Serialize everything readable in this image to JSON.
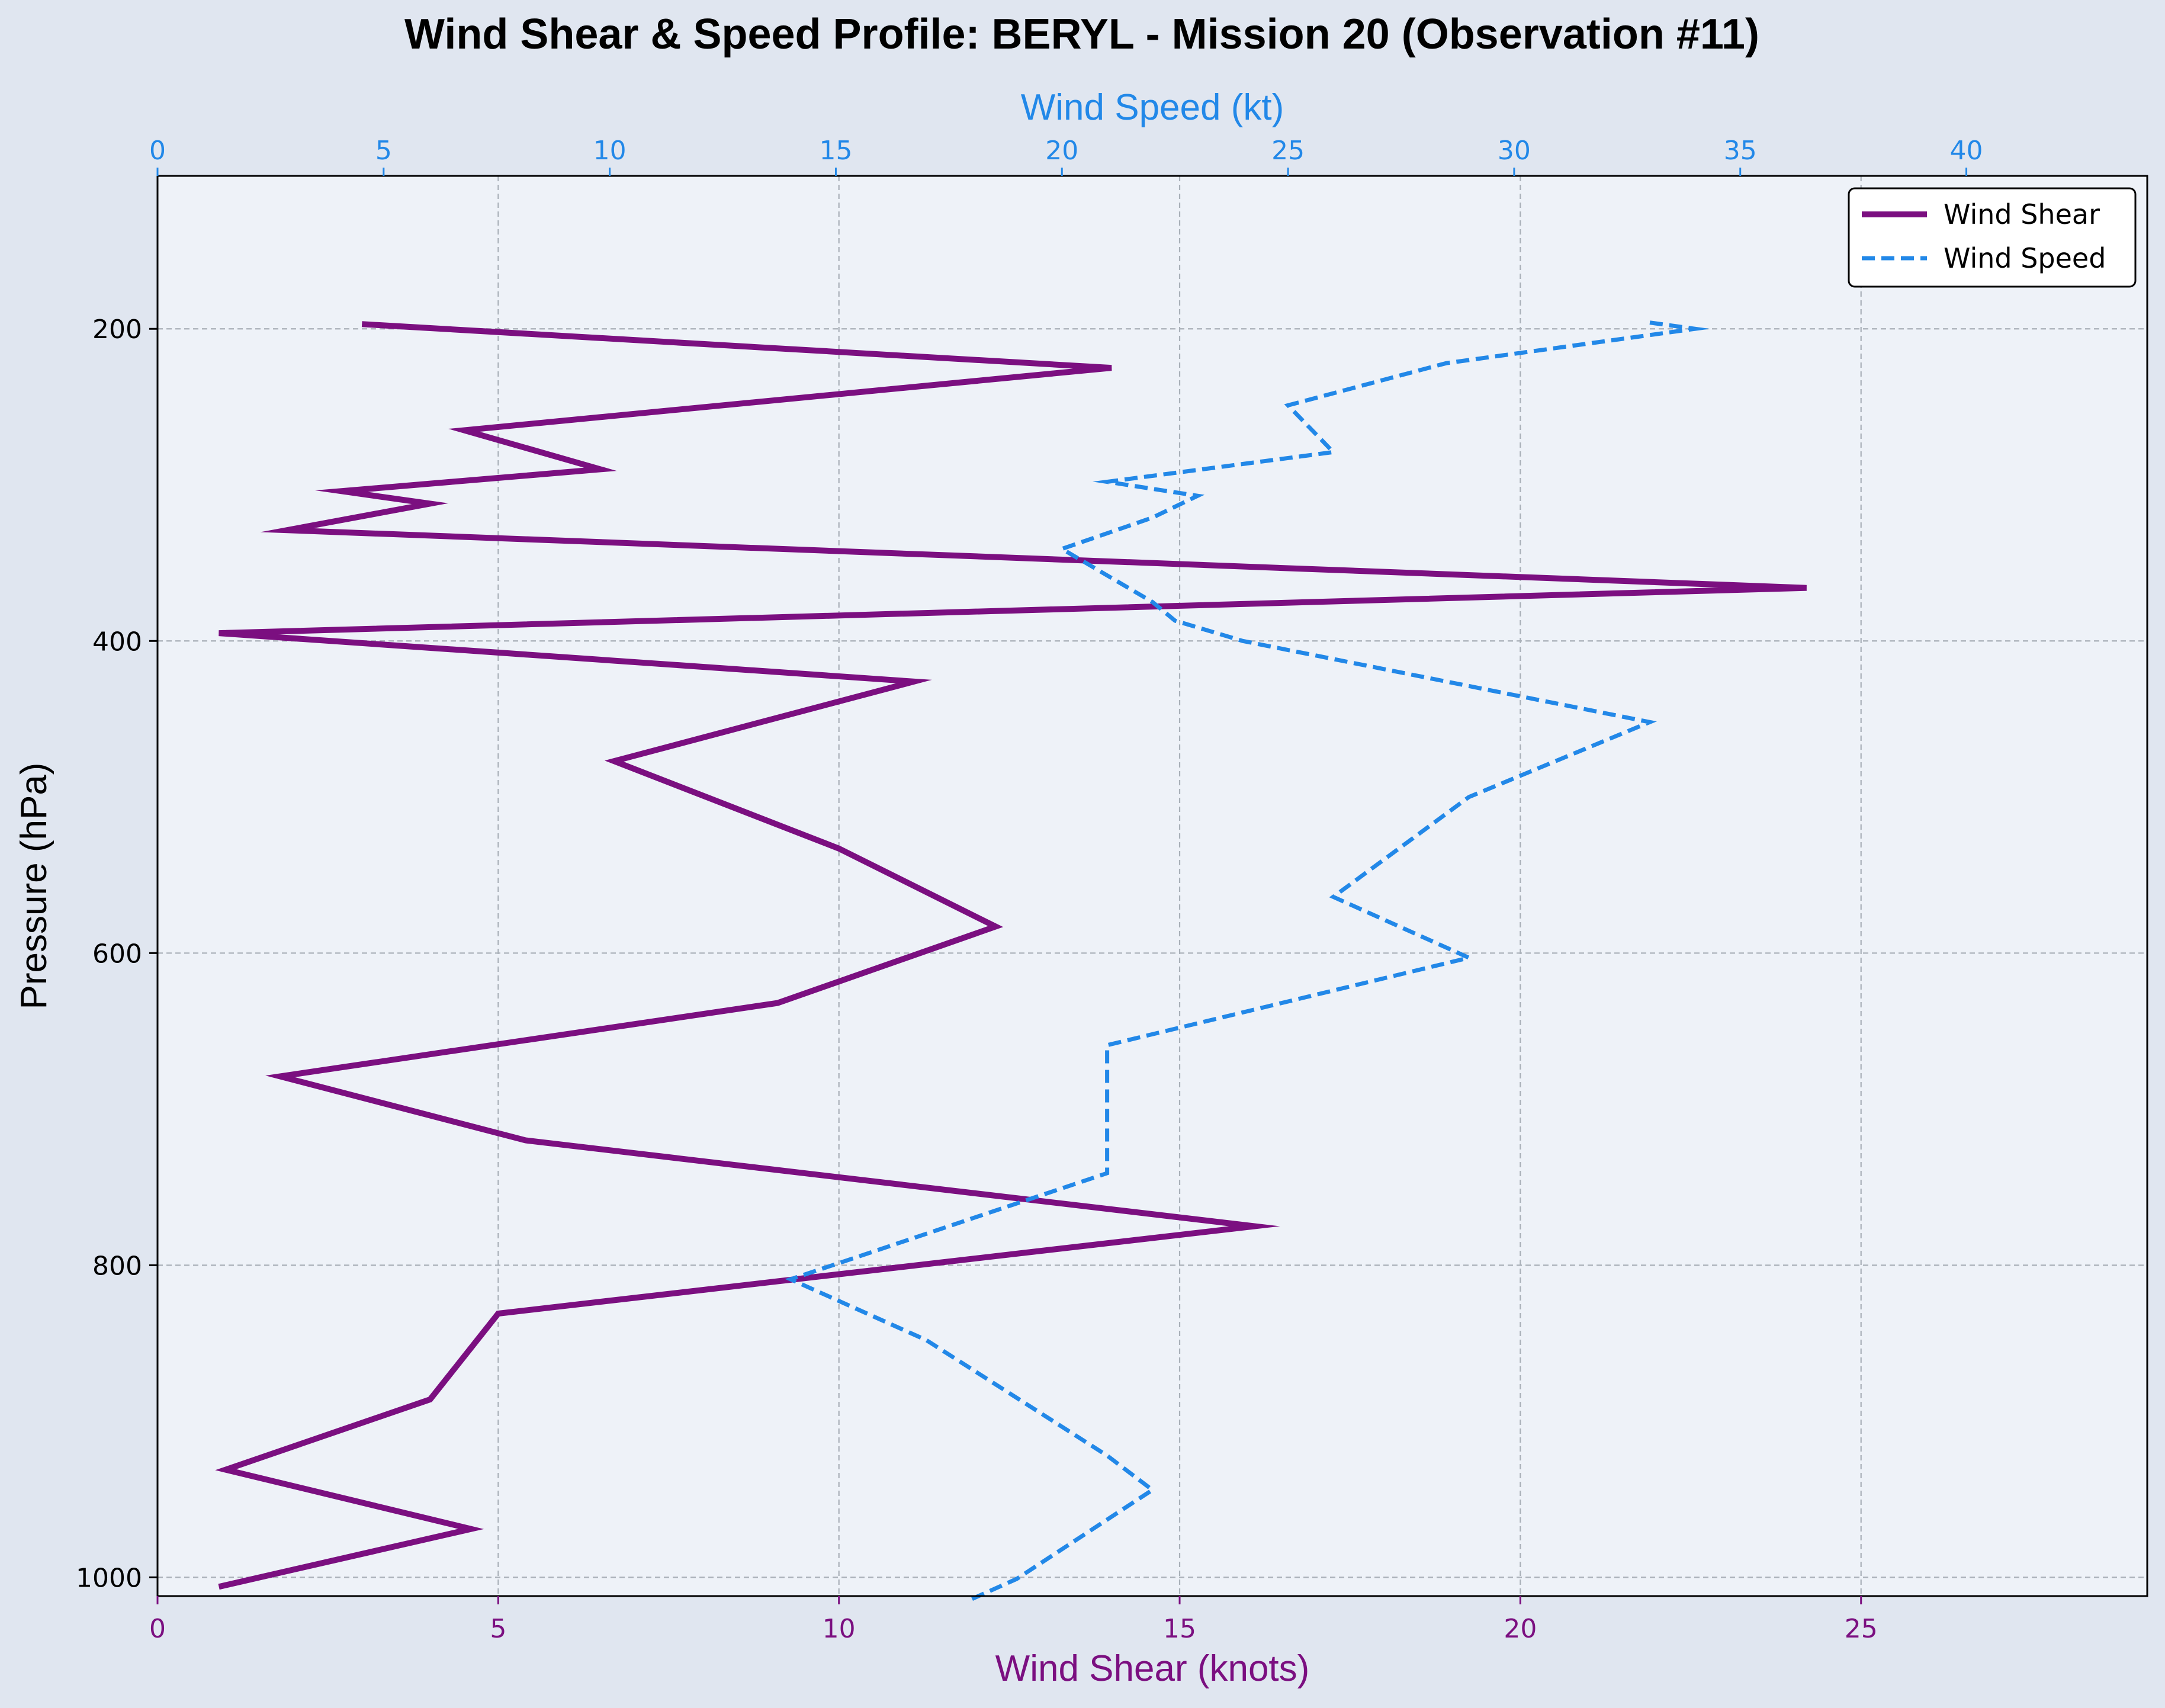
{
  "chart_data": {
    "type": "line",
    "title": "Wind Shear & Speed Profile: BERYL - Mission 20 (Observation #11)",
    "xlabel_bottom": "Wind Shear (knots)",
    "xlabel_top": "Wind Speed (kt)",
    "ylabel": "Pressure (hPa)",
    "xlim_bottom": [
      0,
      29.2
    ],
    "xlim_top": [
      0,
      44
    ],
    "ylim": [
      1012,
      102
    ],
    "y_inverted": true,
    "xticks_bottom": [
      "0",
      "5",
      "10",
      "15",
      "20",
      "25"
    ],
    "xticks_top": [
      "0",
      "5",
      "10",
      "15",
      "20",
      "25",
      "30",
      "35",
      "40"
    ],
    "yticks": [
      "200",
      "400",
      "600",
      "800",
      "1000"
    ],
    "grid": true,
    "legend_position": "top-right",
    "series": [
      {
        "name": "Wind Shear",
        "axis": "bottom",
        "style": "solid",
        "color": "#7b0f80",
        "points": [
          [
            3.0,
            197
          ],
          [
            14.0,
            225
          ],
          [
            4.5,
            265
          ],
          [
            6.5,
            290
          ],
          [
            2.7,
            304
          ],
          [
            4.0,
            312
          ],
          [
            1.9,
            329
          ],
          [
            24.2,
            366
          ],
          [
            0.9,
            395
          ],
          [
            11.1,
            426
          ],
          [
            6.7,
            477
          ],
          [
            10.0,
            533
          ],
          [
            12.3,
            583
          ],
          [
            9.1,
            632
          ],
          [
            1.8,
            679
          ],
          [
            5.4,
            720
          ],
          [
            16.1,
            775
          ],
          [
            5.0,
            831
          ],
          [
            4.0,
            886
          ],
          [
            1.0,
            931
          ],
          [
            4.6,
            969
          ],
          [
            0.9,
            1006
          ]
        ]
      },
      {
        "name": "Wind Speed",
        "axis": "top",
        "style": "dashed",
        "color": "#2288e8",
        "points": [
          [
            33.0,
            196
          ],
          [
            34.0,
            200
          ],
          [
            28.5,
            222
          ],
          [
            25.0,
            249
          ],
          [
            26.0,
            279
          ],
          [
            21.0,
            298
          ],
          [
            23.0,
            307
          ],
          [
            22.0,
            321
          ],
          [
            20.0,
            341
          ],
          [
            22.0,
            375
          ],
          [
            22.5,
            387
          ],
          [
            24.0,
            400
          ],
          [
            33.0,
            452
          ],
          [
            29.0,
            500
          ],
          [
            26.0,
            564
          ],
          [
            29.0,
            603
          ],
          [
            21.0,
            659
          ],
          [
            21.0,
            741
          ],
          [
            14.0,
            809
          ],
          [
            17.0,
            848
          ],
          [
            21.0,
            922
          ],
          [
            22.0,
            944
          ],
          [
            19.0,
            1001
          ],
          [
            18.0,
            1014
          ]
        ]
      }
    ]
  }
}
